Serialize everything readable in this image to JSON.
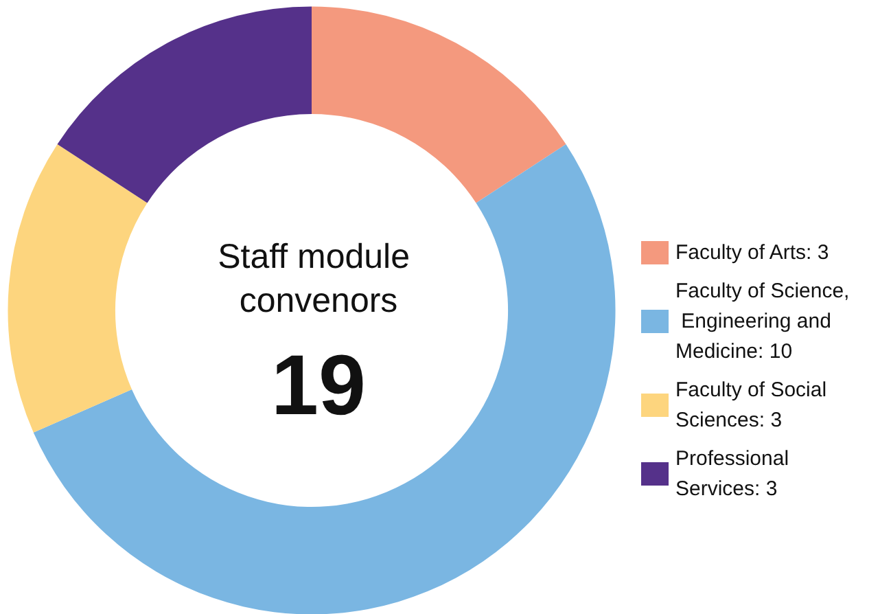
{
  "chart_data": {
    "type": "donut",
    "title": "Staff module convenors",
    "annotations": [
      "19"
    ],
    "categories": [
      "Faculty of Arts: 3",
      "Faculty of Science, Engineering and Medicine: 10",
      "Faculty of Social Sciences: 3",
      "Professional Services: 3"
    ],
    "values": [
      3,
      10,
      3,
      3
    ],
    "colors": [
      "#f4997e",
      "#7ab6e2",
      "#fdd57e",
      "#55318a"
    ],
    "legend": "right"
  }
}
